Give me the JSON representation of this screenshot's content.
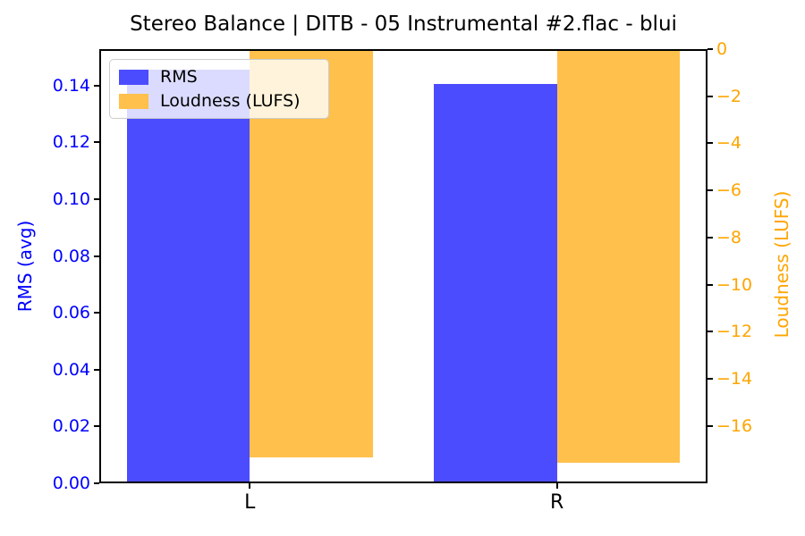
{
  "chart_data": {
    "type": "bar",
    "title": "Stereo Balance | DITB - 05 Instrumental #2.flac - blui",
    "categories": [
      "L",
      "R"
    ],
    "series": [
      {
        "name": "RMS",
        "axis": "left",
        "color": "#4C4CFF",
        "values": [
          0.1455,
          0.1405
        ]
      },
      {
        "name": "Loudness (LUFS)",
        "axis": "right",
        "color": "#FFC04C",
        "values": [
          -17.33,
          -17.55
        ]
      }
    ],
    "bar_width": 0.4,
    "xlim": [
      -0.49,
      1.49
    ],
    "grid": false,
    "left_axis": {
      "label": "RMS (avg)",
      "color": "#0000FF",
      "range": [
        0,
        0.1528
      ],
      "tick_values": [
        0.0,
        0.02,
        0.04,
        0.06,
        0.08,
        0.1,
        0.12,
        0.14
      ],
      "tick_labels": [
        "0.00",
        "0.02",
        "0.04",
        "0.06",
        "0.08",
        "0.10",
        "0.12",
        "0.14"
      ]
    },
    "right_axis": {
      "label": "Loudness (LUFS)",
      "color": "#FFA500",
      "range": [
        -18.43,
        0
      ],
      "tick_values": [
        0,
        -2,
        -4,
        -6,
        -8,
        -10,
        -12,
        -14,
        -16
      ],
      "tick_labels": [
        "0",
        "−2",
        "−4",
        "−6",
        "−8",
        "−10",
        "−12",
        "−14",
        "−16"
      ]
    },
    "x_axis": {
      "tick_labels": [
        "L",
        "R"
      ],
      "color": "#000000"
    },
    "legend": {
      "position": "upper left",
      "entries": [
        "RMS",
        "Loudness (LUFS)"
      ]
    }
  }
}
